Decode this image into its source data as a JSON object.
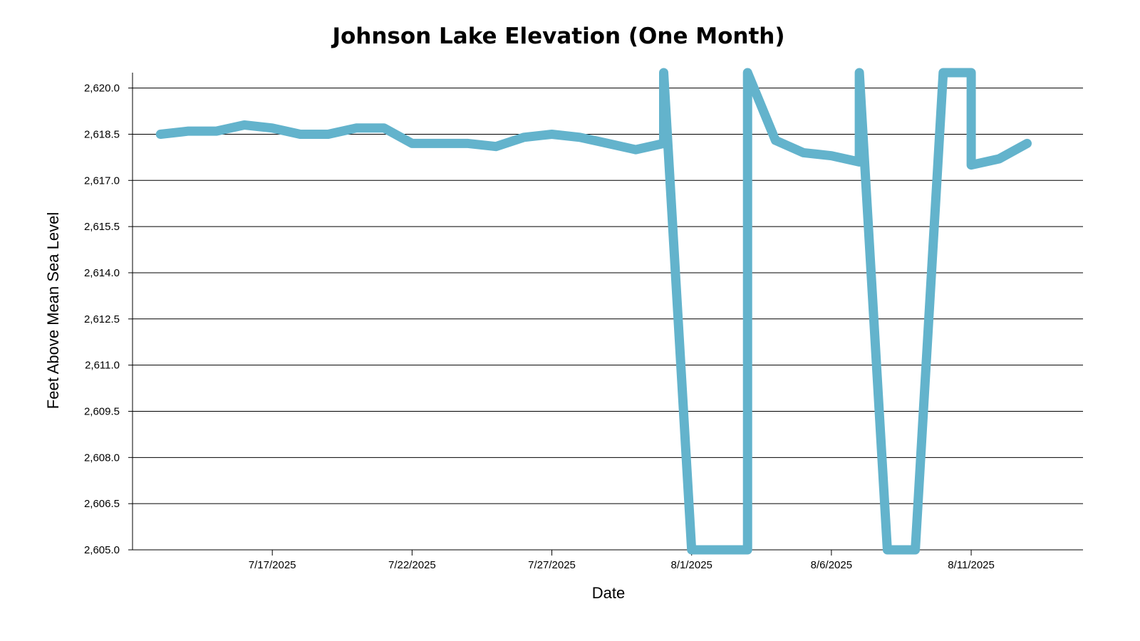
{
  "chart_data": {
    "type": "line",
    "title": "Johnson Lake Elevation (One Month)",
    "xlabel": "Date",
    "ylabel": "Feet Above Mean Sea Level",
    "ylim": [
      2605.0,
      2620.5
    ],
    "xlim": [
      "2025-07-12",
      "2025-08-15"
    ],
    "y_ticks": [
      2605.0,
      2606.5,
      2608.0,
      2609.5,
      2611.0,
      2612.5,
      2614.0,
      2615.5,
      2617.0,
      2618.5,
      2620.0
    ],
    "y_tick_labels": [
      "2,605.0",
      "2,606.5",
      "2,608.0",
      "2,609.5",
      "2,611.0",
      "2,612.5",
      "2,614.0",
      "2,615.5",
      "2,617.0",
      "2,618.5",
      "2,620.0"
    ],
    "x_ticks": [
      "2025-07-17",
      "2025-07-22",
      "2025-07-27",
      "2025-08-01",
      "2025-08-06",
      "2025-08-11"
    ],
    "x_tick_labels": [
      "7/17/2025",
      "7/22/2025",
      "7/27/2025",
      "8/1/2025",
      "8/6/2025",
      "8/11/2025"
    ],
    "grid": true,
    "line_color": "#63b3cc",
    "series": [
      {
        "x": [
          "2025-07-13 00:00",
          "2025-07-14 00:00",
          "2025-07-15 00:00",
          "2025-07-16 00:00",
          "2025-07-17 00:00",
          "2025-07-18 00:00",
          "2025-07-19 00:00",
          "2025-07-20 00:00",
          "2025-07-21 00:00",
          "2025-07-22 00:00",
          "2025-07-23 00:00",
          "2025-07-24 00:00",
          "2025-07-25 00:00",
          "2025-07-26 00:00",
          "2025-07-27 00:00",
          "2025-07-28 00:00",
          "2025-07-29 00:00",
          "2025-07-30 00:00",
          "2025-07-31 00:00",
          "2025-07-31 00:00",
          "2025-08-01 00:00",
          "2025-08-02 00:00",
          "2025-08-03 00:00",
          "2025-08-03 00:00",
          "2025-08-04 00:00",
          "2025-08-05 00:00",
          "2025-08-06 00:00",
          "2025-08-07 00:00",
          "2025-08-07 00:00",
          "2025-08-08 00:00",
          "2025-08-09 00:00",
          "2025-08-10 00:00",
          "2025-08-11 00:00",
          "2025-08-11 00:00",
          "2025-08-12 00:00",
          "2025-08-13 00:00"
        ],
        "y": [
          2618.5,
          2618.6,
          2618.6,
          2618.8,
          2618.7,
          2618.5,
          2618.5,
          2618.7,
          2618.7,
          2618.2,
          2618.2,
          2618.2,
          2618.1,
          2618.4,
          2618.5,
          2618.4,
          2618.2,
          2618.0,
          2618.2,
          2620.5,
          2605.0,
          2605.0,
          2605.0,
          2620.5,
          2618.3,
          2617.9,
          2617.8,
          2617.6,
          2620.5,
          2605.0,
          2605.0,
          2620.5,
          2620.5,
          2617.5,
          2617.7,
          2618.2
        ]
      }
    ]
  }
}
